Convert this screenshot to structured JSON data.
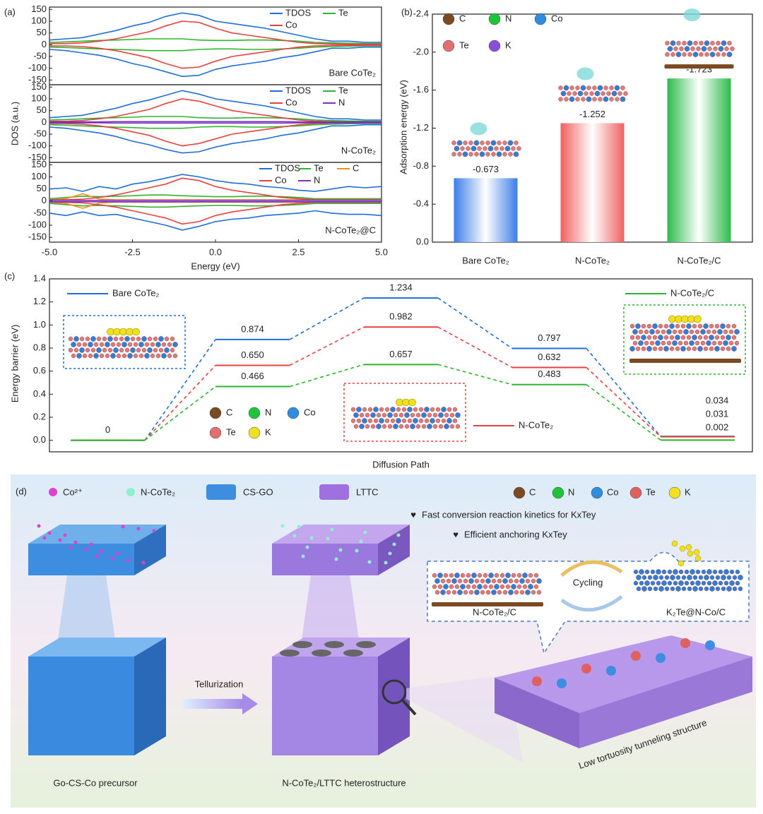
{
  "panel_labels": [
    "(a)",
    "(b)",
    "(c)",
    "(d)"
  ],
  "chart_data": [
    {
      "type": "line",
      "x": [
        -5,
        -4.5,
        -4,
        -3.5,
        -3,
        -2.5,
        -2,
        -1.5,
        -1,
        -0.5,
        0,
        0.5,
        1,
        1.5,
        2,
        2.5,
        3,
        3.5,
        4,
        4.5,
        5
      ],
      "xlim": [
        -5,
        5
      ],
      "ylim": [
        -170,
        160
      ],
      "yticks": [
        150,
        100,
        50,
        0,
        -50,
        -100,
        -150
      ],
      "annotation": "Bare CoTe₂",
      "annotation_color": "#1f6fd6",
      "series": [
        {
          "name": "TDOS",
          "color": "#1f6fd6",
          "values": [
            20,
            25,
            30,
            45,
            60,
            80,
            95,
            120,
            135,
            125,
            100,
            90,
            80,
            70,
            55,
            40,
            25,
            15,
            15,
            10,
            10
          ],
          "values_down": [
            -20,
            -25,
            -35,
            -45,
            -60,
            -80,
            -95,
            -115,
            -135,
            -130,
            -105,
            -90,
            -80,
            -70,
            -55,
            -45,
            -30,
            -15,
            -15,
            -10,
            -10
          ]
        },
        {
          "name": "Te",
          "color": "#2fb52f",
          "values": [
            10,
            12,
            15,
            18,
            20,
            22,
            25,
            25,
            25,
            20,
            18,
            18,
            20,
            20,
            18,
            15,
            10,
            8,
            6,
            5,
            5
          ],
          "values_down": [
            -10,
            -12,
            -15,
            -18,
            -20,
            -22,
            -25,
            -25,
            -25,
            -20,
            -18,
            -18,
            -20,
            -20,
            -18,
            -15,
            -10,
            -8,
            -6,
            -5,
            -5
          ]
        },
        {
          "name": "Co",
          "color": "#e8413f",
          "values": [
            5,
            5,
            8,
            15,
            25,
            40,
            55,
            80,
            100,
            95,
            70,
            50,
            40,
            30,
            20,
            10,
            5,
            3,
            2,
            2,
            2
          ],
          "values_down": [
            -5,
            -5,
            -8,
            -15,
            -25,
            -40,
            -55,
            -80,
            -100,
            -95,
            -70,
            -50,
            -40,
            -30,
            -20,
            -10,
            -5,
            -3,
            -2,
            -2,
            -2
          ]
        }
      ]
    },
    {
      "type": "line",
      "x": [
        -5,
        -4.5,
        -4,
        -3.5,
        -3,
        -2.5,
        -2,
        -1.5,
        -1,
        -0.5,
        0,
        0.5,
        1,
        1.5,
        2,
        2.5,
        3,
        3.5,
        4,
        4.5,
        5
      ],
      "xlim": [
        -5,
        5
      ],
      "ylim": [
        -170,
        160
      ],
      "yticks": [
        150,
        100,
        50,
        0,
        -50,
        -100,
        -150
      ],
      "ylabel": "DOS (a.u.)",
      "annotation": "N-CoTe₂",
      "annotation_color": "#e8413f",
      "series": [
        {
          "name": "TDOS",
          "color": "#1f6fd6",
          "values": [
            20,
            25,
            30,
            45,
            60,
            80,
            95,
            115,
            135,
            120,
            100,
            90,
            80,
            70,
            55,
            40,
            25,
            15,
            15,
            10,
            10
          ],
          "values_down": [
            -20,
            -25,
            -35,
            -45,
            -60,
            -80,
            -95,
            -115,
            -130,
            -125,
            -105,
            -90,
            -80,
            -70,
            -55,
            -45,
            -30,
            -15,
            -15,
            -10,
            -10
          ]
        },
        {
          "name": "Te",
          "color": "#2fb52f",
          "values": [
            10,
            12,
            15,
            18,
            20,
            22,
            25,
            25,
            25,
            20,
            18,
            18,
            20,
            20,
            18,
            15,
            10,
            8,
            6,
            5,
            5
          ],
          "values_down": [
            -10,
            -12,
            -15,
            -18,
            -20,
            -22,
            -25,
            -25,
            -25,
            -20,
            -18,
            -18,
            -20,
            -20,
            -18,
            -15,
            -10,
            -8,
            -6,
            -5,
            -5
          ]
        },
        {
          "name": "Co",
          "color": "#e8413f",
          "values": [
            5,
            5,
            8,
            15,
            25,
            40,
            55,
            80,
            100,
            90,
            70,
            50,
            40,
            30,
            20,
            10,
            5,
            3,
            2,
            2,
            2
          ],
          "values_down": [
            -5,
            -5,
            -8,
            -15,
            -25,
            -40,
            -55,
            -80,
            -100,
            -90,
            -70,
            -50,
            -40,
            -30,
            -20,
            -10,
            -5,
            -3,
            -2,
            -2,
            -2
          ]
        },
        {
          "name": "N",
          "color": "#7b2fbe",
          "values": [
            2,
            2,
            2,
            2,
            3,
            3,
            3,
            3,
            3,
            3,
            3,
            3,
            3,
            3,
            3,
            2,
            2,
            2,
            2,
            2,
            2
          ],
          "values_down": [
            -2,
            -2,
            -2,
            -2,
            -3,
            -3,
            -3,
            -3,
            -3,
            -3,
            -3,
            -3,
            -3,
            -3,
            -3,
            -2,
            -2,
            -2,
            -2,
            -2,
            -2
          ]
        }
      ]
    },
    {
      "type": "line",
      "x": [
        -5,
        -4.5,
        -4,
        -3.5,
        -3,
        -2.5,
        -2,
        -1.5,
        -1,
        -0.5,
        0,
        0.5,
        1,
        1.5,
        2,
        2.5,
        3,
        3.5,
        4,
        4.5,
        5
      ],
      "xlim": [
        -5,
        5
      ],
      "ylim": [
        -170,
        160
      ],
      "yticks": [
        150,
        100,
        50,
        0,
        -50,
        -100,
        -150
      ],
      "xticks": [
        {
          "value": -5,
          "label": "-5.0"
        },
        {
          "value": -2.5,
          "label": "-2.5"
        },
        {
          "value": 0,
          "label": "0.0"
        },
        {
          "value": 2.5,
          "label": "2.5"
        },
        {
          "value": 5,
          "label": "5.0"
        }
      ],
      "xlabel": "Energy (eV)",
      "annotation": "N-CoTe₂@C",
      "annotation_color": "#2fb52f",
      "series": [
        {
          "name": "TDOS",
          "color": "#1f6fd6",
          "values": [
            50,
            55,
            40,
            60,
            50,
            70,
            80,
            95,
            110,
            100,
            85,
            75,
            70,
            60,
            55,
            45,
            40,
            50,
            60,
            55,
            60
          ],
          "values_down": [
            -50,
            -60,
            -45,
            -60,
            -55,
            -70,
            -85,
            -100,
            -120,
            -105,
            -85,
            -75,
            -70,
            -60,
            -55,
            -50,
            -40,
            -50,
            -55,
            -55,
            -60
          ]
        },
        {
          "name": "Te",
          "color": "#2fb52f",
          "values": [
            10,
            15,
            20,
            18,
            20,
            22,
            25,
            25,
            22,
            20,
            18,
            18,
            20,
            20,
            18,
            15,
            10,
            10,
            10,
            10,
            10
          ],
          "values_down": [
            -10,
            -15,
            -20,
            -18,
            -20,
            -22,
            -25,
            -25,
            -22,
            -20,
            -18,
            -18,
            -20,
            -20,
            -18,
            -15,
            -10,
            -10,
            -10,
            -10,
            -10
          ]
        },
        {
          "name": "C",
          "color": "#ff8c1a",
          "values": [
            5,
            10,
            30,
            8,
            5,
            5,
            5,
            5,
            5,
            5,
            5,
            5,
            5,
            5,
            5,
            5,
            5,
            5,
            5,
            5,
            5
          ],
          "values_down": [
            -5,
            -10,
            -30,
            -8,
            -5,
            -5,
            -5,
            -5,
            -5,
            -5,
            -5,
            -5,
            -5,
            -5,
            -5,
            -5,
            -5,
            -5,
            -5,
            -5,
            -5
          ]
        },
        {
          "name": "Co",
          "color": "#e8413f",
          "values": [
            5,
            5,
            8,
            15,
            25,
            40,
            55,
            70,
            95,
            85,
            60,
            45,
            35,
            25,
            15,
            10,
            5,
            5,
            5,
            5,
            5
          ],
          "values_down": [
            -5,
            -5,
            -8,
            -15,
            -25,
            -40,
            -55,
            -70,
            -95,
            -85,
            -60,
            -45,
            -35,
            -25,
            -15,
            -10,
            -5,
            -5,
            -5,
            -5,
            -5
          ]
        },
        {
          "name": "N",
          "color": "#7b2fbe",
          "values": [
            3,
            3,
            3,
            3,
            3,
            3,
            3,
            3,
            3,
            3,
            3,
            3,
            3,
            3,
            3,
            3,
            3,
            3,
            3,
            3,
            3
          ],
          "values_down": [
            -3,
            -3,
            -3,
            -3,
            -3,
            -3,
            -3,
            -3,
            -3,
            -3,
            -3,
            -3,
            -3,
            -3,
            -3,
            -3,
            -3,
            -3,
            -3,
            -3,
            -3
          ]
        }
      ]
    },
    {
      "type": "bar",
      "categories": [
        "Bare CoTe₂",
        "N-CoTe₂",
        "N-CoTe₂/C"
      ],
      "values": [
        -0.673,
        -1.252,
        -1.723
      ],
      "colors": [
        "#3d7de8",
        "#f06060",
        "#2dbb4a"
      ],
      "ylim": [
        0,
        -2.4
      ],
      "yticks": [
        {
          "value": 0,
          "label": "0.0"
        },
        -0.4,
        -0.8,
        -1.2,
        -1.6,
        {
          "value": -2,
          "label": "-2.0"
        },
        -2.4
      ],
      "ylabel": "Adsorption energy (eV)",
      "atom_legend": [
        {
          "name": "C",
          "color": "#7b4a22"
        },
        {
          "name": "N",
          "color": "#1fc43a"
        },
        {
          "name": "Co",
          "color": "#2f8de0"
        },
        {
          "name": "Te",
          "color": "#e07070"
        },
        {
          "name": "K",
          "color": "#8a4fd8"
        }
      ]
    },
    {
      "type": "step",
      "ylim": [
        -0.1,
        1.4
      ],
      "yticks": [
        {
          "value": 0,
          "label": "0.0"
        },
        0.2,
        0.4,
        0.6,
        0.8,
        {
          "value": 1,
          "label": "1.0"
        },
        1.2,
        1.4
      ],
      "xlabel": "Diffusion Path",
      "ylabel": "Energy barrier (eV)",
      "series": [
        {
          "name": "Bare CoTe₂",
          "color": "#1f6fd6",
          "values": [
            0,
            0.874,
            1.234,
            0.797,
            0.034
          ],
          "value_labels": [
            "0",
            "0.874",
            "1.234",
            "0.797",
            "0.034"
          ]
        },
        {
          "name": "N-CoTe₂",
          "color": "#e8413f",
          "values": [
            0,
            0.65,
            0.982,
            0.632,
            0.031
          ],
          "value_labels": [
            null,
            "0.650",
            "0.982",
            "0.632",
            "0.031"
          ]
        },
        {
          "name": "N-CoTe₂/C",
          "color": "#2fb52f",
          "values": [
            0,
            0.466,
            0.657,
            0.483,
            0.002
          ],
          "value_labels": [
            null,
            "0.466",
            "0.657",
            "0.483",
            "0.002"
          ]
        }
      ],
      "atom_legend": [
        {
          "name": "C",
          "color": "#7b4a22"
        },
        {
          "name": "N",
          "color": "#1fc43a"
        },
        {
          "name": "Co",
          "color": "#2f8de0"
        },
        {
          "name": "Te",
          "color": "#e07070"
        },
        {
          "name": "K",
          "color": "#f0e020"
        }
      ]
    }
  ],
  "diagram": {
    "legend": [
      {
        "label": "Co²⁺",
        "color": "#e040d0"
      },
      {
        "label": "N-CoTe₂",
        "color": "#8ff0d0"
      },
      {
        "label": "CS-GO",
        "color": "#3d8de0"
      },
      {
        "label": "LTTC",
        "color": "#a070e0"
      }
    ],
    "atoms": [
      {
        "name": "C",
        "color": "#7b4a22"
      },
      {
        "name": "N",
        "color": "#1fc43a"
      },
      {
        "name": "Co",
        "color": "#2f8de0"
      },
      {
        "name": "Te",
        "color": "#e06060"
      },
      {
        "name": "K",
        "color": "#f0e020"
      }
    ],
    "bullets": [
      "Fast conversion reaction kinetics for KxTey",
      "Efficient anchoring KxTey"
    ],
    "cycling": "Cycling",
    "left_structure": "N-CoTe₂/C",
    "right_structure": "K₂Te@N-Co/C",
    "arrow": "Tellurization",
    "captions": [
      "Go-CS-Co precursor",
      "N-CoTe₂/LTTC heterostructure",
      "Low tortuosity tunneling structure"
    ]
  }
}
